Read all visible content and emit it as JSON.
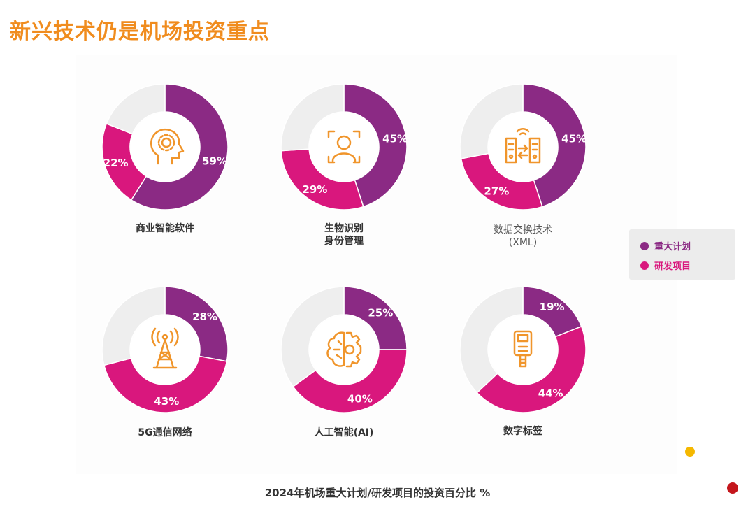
{
  "title": "新兴技术仍是机场投资重点",
  "footer": "2024年机场重大计划/研发项目的投资百分比 %",
  "colors": {
    "major_plan": "#8b2a84",
    "rd_project": "#d9177d",
    "rest": "#eeeeee",
    "icon": "#f0952b",
    "title": "#f08c1e"
  },
  "legend": [
    {
      "label": "重大计划",
      "color": "#8b2a84"
    },
    {
      "label": "研发项目",
      "color": "#d9177d"
    }
  ],
  "chart_data": [
    {
      "type": "pie",
      "title": "商业智能软件",
      "icon": "head-gear-icon",
      "series": [
        {
          "name": "重大计划",
          "value": 59,
          "label": "59%"
        },
        {
          "name": "研发项目",
          "value": 22,
          "label": "22%"
        }
      ]
    },
    {
      "type": "pie",
      "title": "生物识别\n身份管理",
      "icon": "face-scan-icon",
      "series": [
        {
          "name": "重大计划",
          "value": 45,
          "label": "45%"
        },
        {
          "name": "研发项目",
          "value": 29,
          "label": "29%"
        }
      ]
    },
    {
      "type": "pie",
      "title": "数据交换技术\n(XML)",
      "icon": "server-exchange-icon",
      "series": [
        {
          "name": "重大计划",
          "value": 45,
          "label": "45%"
        },
        {
          "name": "研发项目",
          "value": 27,
          "label": "27%"
        }
      ]
    },
    {
      "type": "pie",
      "title": "5G通信网络",
      "icon": "antenna-tower-icon",
      "series": [
        {
          "name": "重大计划",
          "value": 28,
          "label": "28%"
        },
        {
          "name": "研发项目",
          "value": 43,
          "label": "43%"
        }
      ]
    },
    {
      "type": "pie",
      "title": "人工智能(AI)",
      "icon": "brain-gear-icon",
      "series": [
        {
          "name": "重大计划",
          "value": 25,
          "label": "25%"
        },
        {
          "name": "研发项目",
          "value": 40,
          "label": "40%"
        }
      ]
    },
    {
      "type": "pie",
      "title": "数字标签",
      "icon": "tag-reader-icon",
      "series": [
        {
          "name": "重大计划",
          "value": 19,
          "label": "19%"
        },
        {
          "name": "研发项目",
          "value": 44,
          "label": "44%"
        }
      ]
    }
  ]
}
